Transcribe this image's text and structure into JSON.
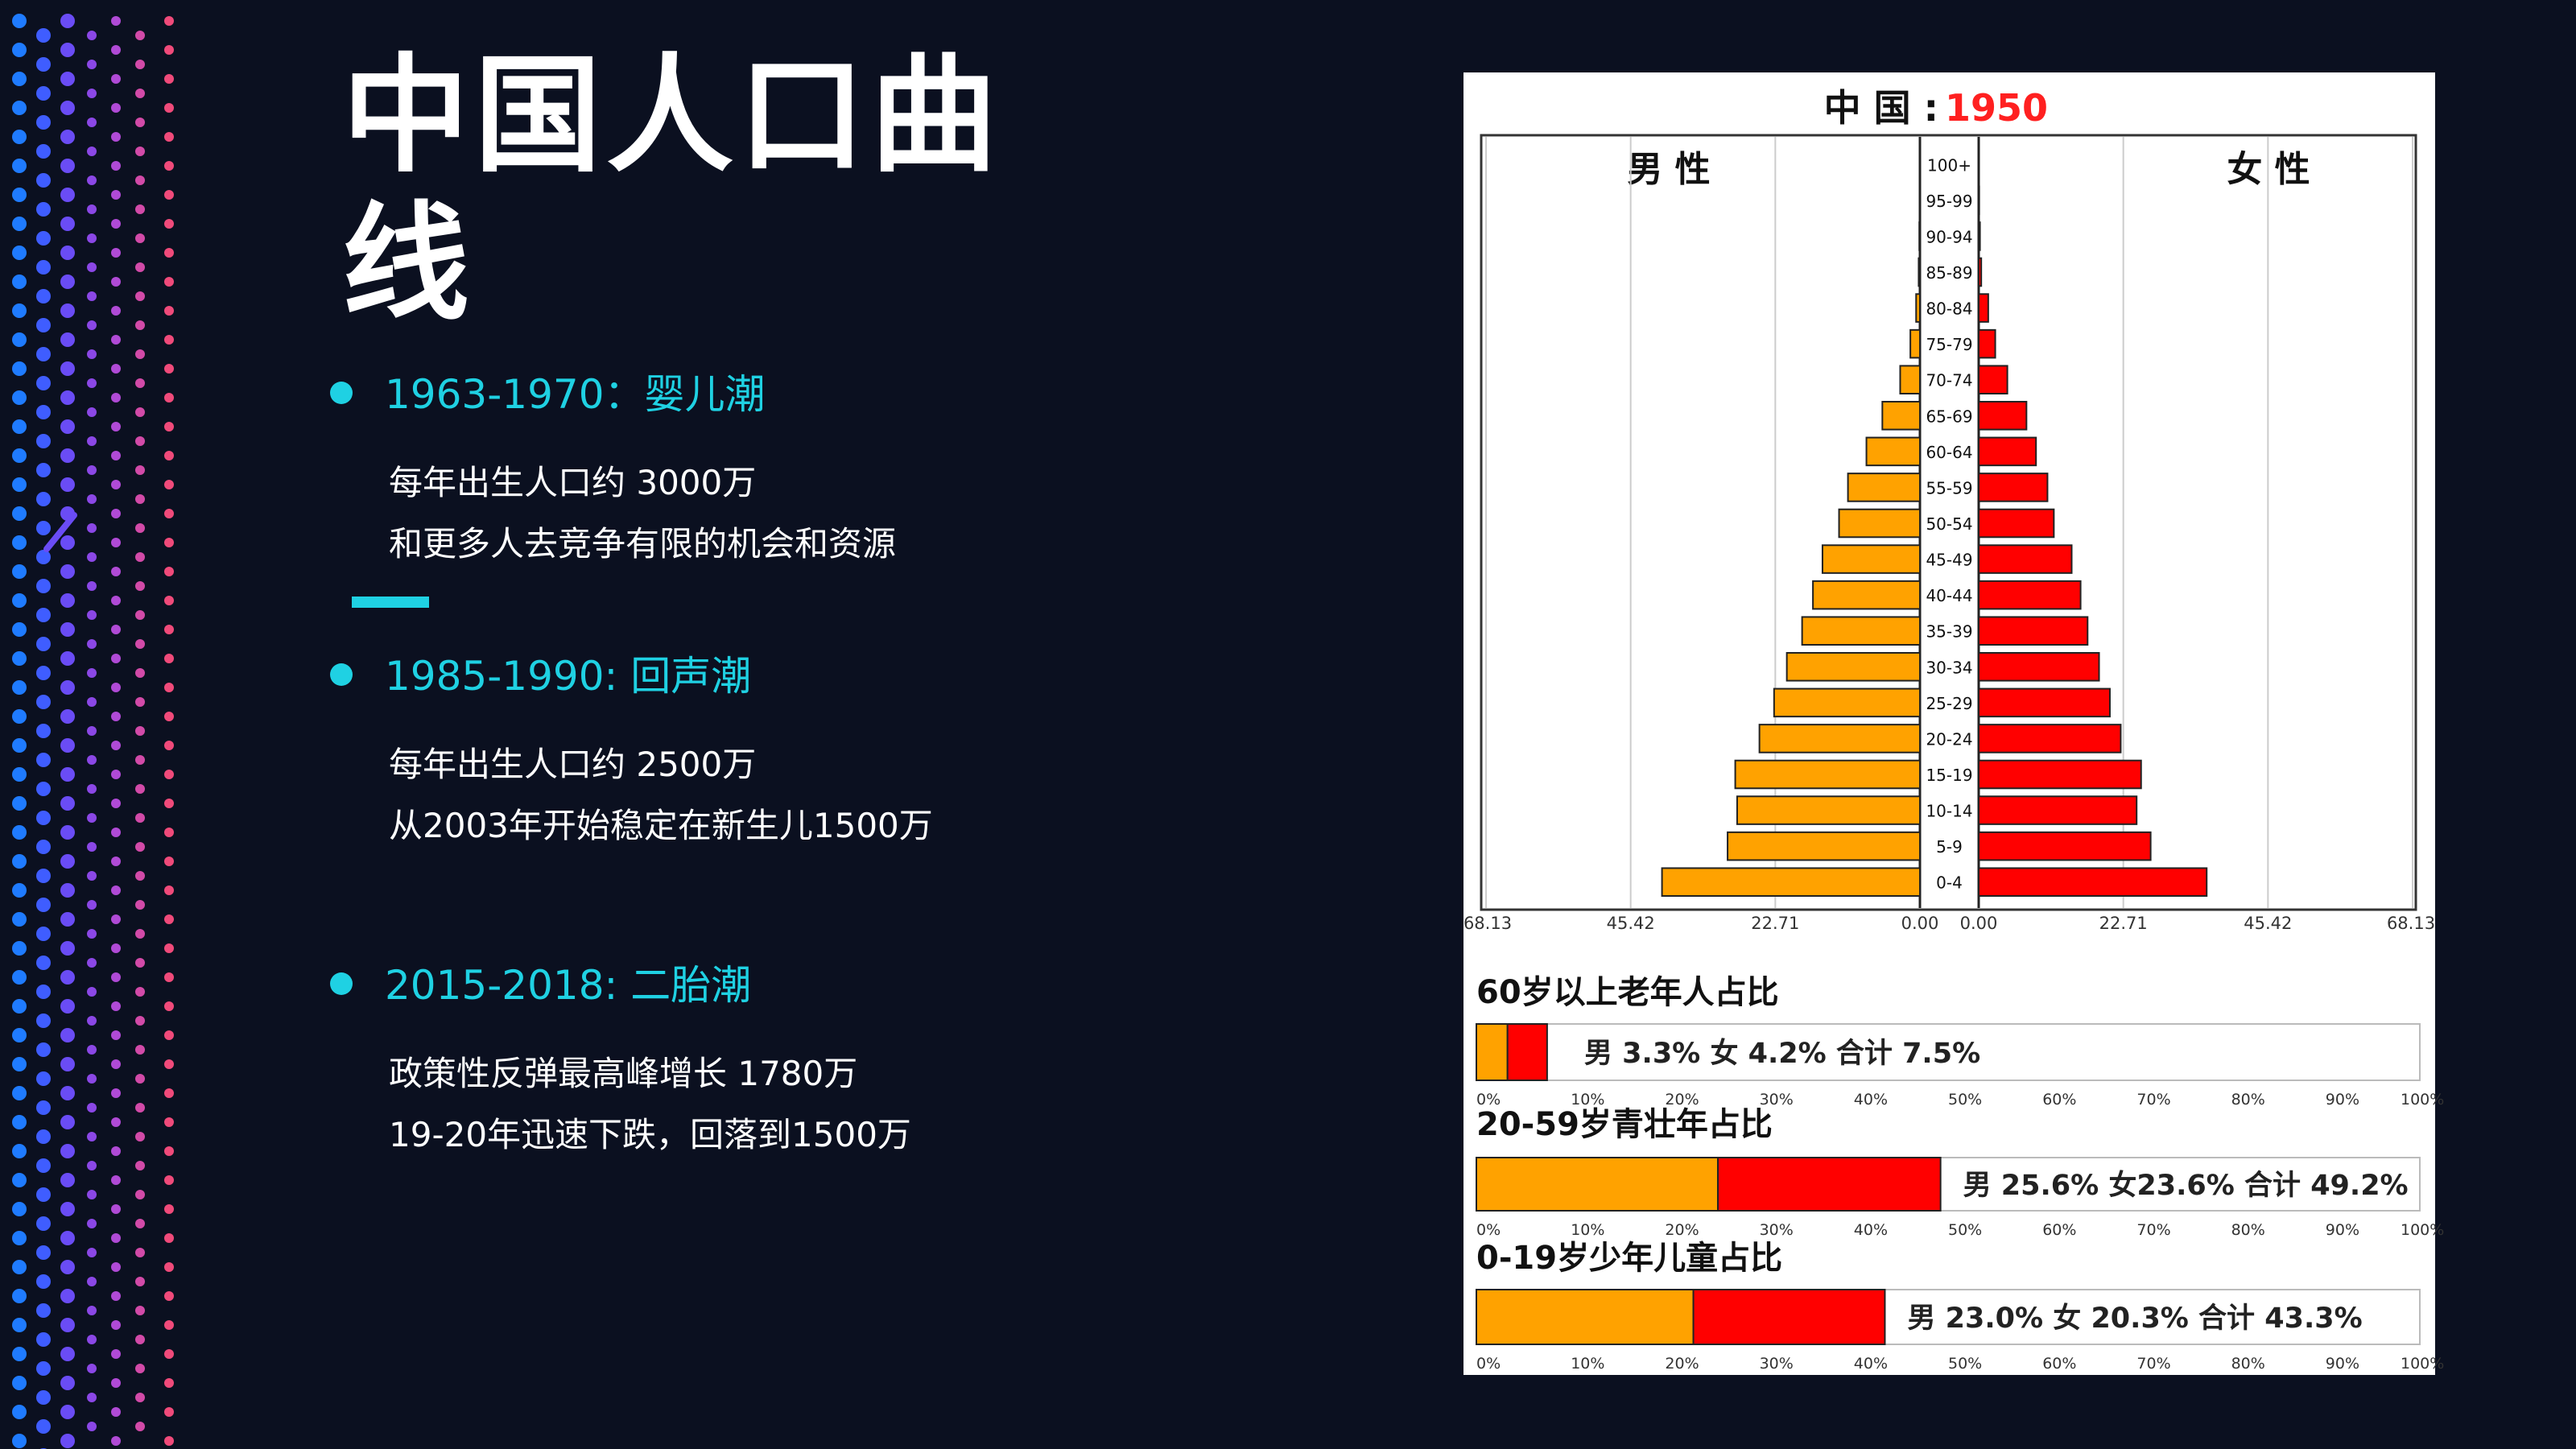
{
  "slide": {
    "title_lines": [
      "中国人口曲",
      "线"
    ],
    "bullets": [
      {
        "title": "1963-1970：婴儿潮",
        "lines": [
          "每年出生人口约 3000万",
          "和更多人去竞争有限的机会和资源"
        ]
      },
      {
        "title": "1985-1990: 回声潮",
        "lines": [
          "每年出生人口约 2500万",
          "从2003年开始稳定在新生儿1500万"
        ]
      },
      {
        "title": "2015-2018:  二胎潮",
        "lines": [
          "政策性反弹最高峰增长 1780万",
          "19-20年迅速下跌，回落到1500万"
        ]
      }
    ]
  },
  "colors": {
    "background": "#0b1020",
    "accent": "#1fd1e3",
    "male": "#ffa200",
    "female": "#ff0000"
  },
  "chart_data": [
    {
      "type": "bar",
      "subtype": "population-pyramid",
      "title_prefix": "中 国 :",
      "title_year": "1950",
      "left_label": "男 性",
      "right_label": "女 性",
      "categories": [
        "0-4",
        "5-9",
        "10-14",
        "15-19",
        "20-24",
        "25-29",
        "30-34",
        "35-39",
        "40-44",
        "45-49",
        "50-54",
        "55-59",
        "60-64",
        "65-69",
        "70-74",
        "75-79",
        "80-84",
        "85-89",
        "90-94",
        "95-99",
        "100+"
      ],
      "series": [
        {
          "name": "男 性",
          "values": [
            40.5,
            30.2,
            28.7,
            29.0,
            25.2,
            22.9,
            20.9,
            18.5,
            16.8,
            15.3,
            12.7,
            11.3,
            8.4,
            5.9,
            3.1,
            1.5,
            0.6,
            0.2,
            0.1,
            0.05,
            0.02
          ]
        },
        {
          "name": "女 性",
          "values": [
            35.8,
            27.0,
            24.8,
            25.5,
            22.3,
            20.6,
            18.9,
            17.1,
            16.0,
            14.6,
            11.8,
            10.8,
            9.0,
            7.5,
            4.5,
            2.6,
            1.5,
            0.4,
            0.2,
            0.08,
            0.03
          ]
        }
      ],
      "x_ticks_left": [
        "68.13",
        "45.42",
        "22.71",
        "0.00"
      ],
      "x_ticks_right": [
        "0.00",
        "22.71",
        "45.42",
        "68.13"
      ],
      "xlim": [
        0,
        68.13
      ]
    },
    {
      "type": "bar",
      "subtype": "stacked-horizontal",
      "xlim": [
        0,
        100
      ],
      "x_ticks": [
        "0%",
        "10%",
        "20%",
        "30%",
        "40%",
        "50%",
        "60%",
        "70%",
        "80%",
        "90%",
        "100%"
      ],
      "groups": [
        {
          "title": "60岁以上老年人占比",
          "male": 3.3,
          "female": 4.2,
          "label": "男 3.3%  女 4.2%  合计 7.5%"
        },
        {
          "title": "20-59岁青壮年占比",
          "male": 25.6,
          "female": 23.6,
          "label": "男 25.6%  女23.6%  合计 49.2%"
        },
        {
          "title": "0-19岁少年儿童占比",
          "male": 23.0,
          "female": 20.3,
          "label": "男 23.0%  女 20.3%  合计  43.3%"
        }
      ]
    }
  ]
}
